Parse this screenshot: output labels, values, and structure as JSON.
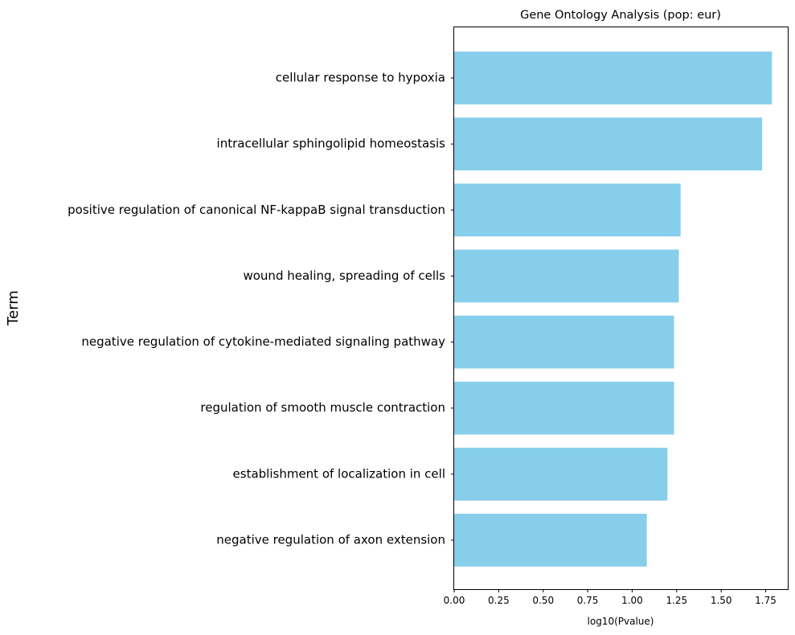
{
  "chart_data": {
    "type": "bar",
    "orientation": "horizontal",
    "title": "Gene Ontology Analysis (pop: eur)",
    "xlabel": "log10(Pvalue)",
    "ylabel": "Term",
    "categories": [
      "cellular response to hypoxia",
      "intracellular sphingolipid homeostasis",
      "positive regulation of canonical NF-kappaB signal transduction",
      "wound healing, spreading of cells",
      "negative regulation of cytokine-mediated signaling pathway",
      "regulation of smooth muscle contraction",
      "establishment of localization in cell",
      "negative regulation of axon extension"
    ],
    "values": [
      1.785,
      1.73,
      1.272,
      1.262,
      1.235,
      1.235,
      1.198,
      1.082
    ],
    "xlim": [
      0,
      1.874
    ],
    "xticks": [
      "0.00",
      "0.25",
      "0.50",
      "0.75",
      "1.00",
      "1.25",
      "1.50",
      "1.75"
    ],
    "grid": false,
    "bar_color": "#87ceeb"
  }
}
